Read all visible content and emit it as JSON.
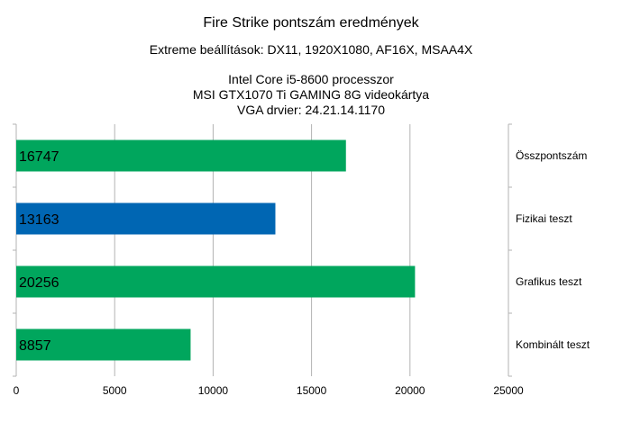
{
  "chart_data": {
    "type": "bar",
    "orientation": "horizontal",
    "title": "Fire Strike pontszám eredmények",
    "subtitle": "Extreme beállítások: DX11, 1920X1080, AF16X, MSAA4X",
    "info_lines": [
      "Intel Core i5-8600 processzor",
      "MSI GTX1070 Ti GAMING 8G videokártya",
      "VGA drvier: 24.21.14.1170"
    ],
    "categories": [
      "Összpontszám",
      "Fizikai teszt",
      "Grafikus teszt",
      "Kombinált teszt"
    ],
    "values": [
      16747,
      13163,
      20256,
      8857
    ],
    "data_labels": [
      "16747",
      "13163",
      "20256",
      "8857"
    ],
    "bar_colors": [
      "#00a65d",
      "#0066b3",
      "#00a65d",
      "#00a65d"
    ],
    "xlim": [
      0,
      25000
    ],
    "xticks": [
      "0",
      "5000",
      "10000",
      "15000",
      "20000",
      "25000"
    ],
    "xtick_values": [
      0,
      5000,
      10000,
      15000,
      20000,
      25000
    ],
    "grid": true,
    "legend": "none",
    "category_label_position": "right"
  }
}
